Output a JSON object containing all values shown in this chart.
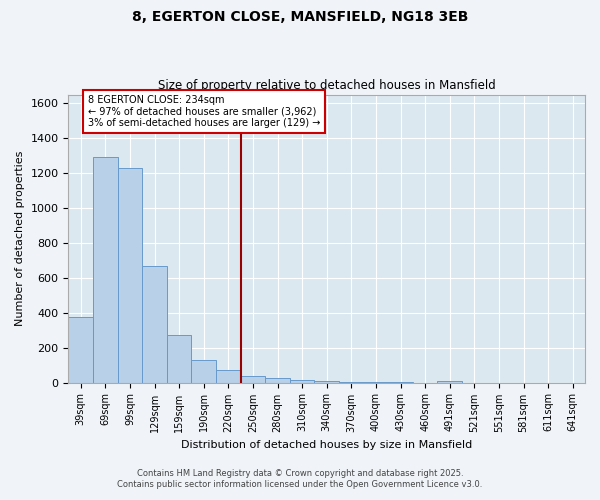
{
  "title1": "8, EGERTON CLOSE, MANSFIELD, NG18 3EB",
  "title2": "Size of property relative to detached houses in Mansfield",
  "xlabel": "Distribution of detached houses by size in Mansfield",
  "ylabel": "Number of detached properties",
  "categories": [
    "39sqm",
    "69sqm",
    "99sqm",
    "129sqm",
    "159sqm",
    "190sqm",
    "220sqm",
    "250sqm",
    "280sqm",
    "310sqm",
    "340sqm",
    "370sqm",
    "400sqm",
    "430sqm",
    "460sqm",
    "491sqm",
    "521sqm",
    "551sqm",
    "581sqm",
    "611sqm",
    "641sqm"
  ],
  "values": [
    375,
    1295,
    1230,
    670,
    270,
    130,
    70,
    35,
    25,
    15,
    10,
    5,
    5,
    5,
    0,
    10,
    0,
    0,
    0,
    0,
    0
  ],
  "bar_color": "#b8d0e8",
  "bar_edge_color": "#6699cc",
  "vline_color": "#990000",
  "annotation_text": "8 EGERTON CLOSE: 234sqm\n← 97% of detached houses are smaller (3,962)\n3% of semi-detached houses are larger (129) →",
  "annotation_box_color": "#ffffff",
  "annotation_box_edge": "#cc0000",
  "ylim": [
    0,
    1650
  ],
  "yticks": [
    0,
    200,
    400,
    600,
    800,
    1000,
    1200,
    1400,
    1600
  ],
  "background_color": "#dce8f0",
  "fig_color": "#f0f4f8",
  "grid_color": "#ffffff",
  "footer1": "Contains HM Land Registry data © Crown copyright and database right 2025.",
  "footer2": "Contains public sector information licensed under the Open Government Licence v3.0."
}
